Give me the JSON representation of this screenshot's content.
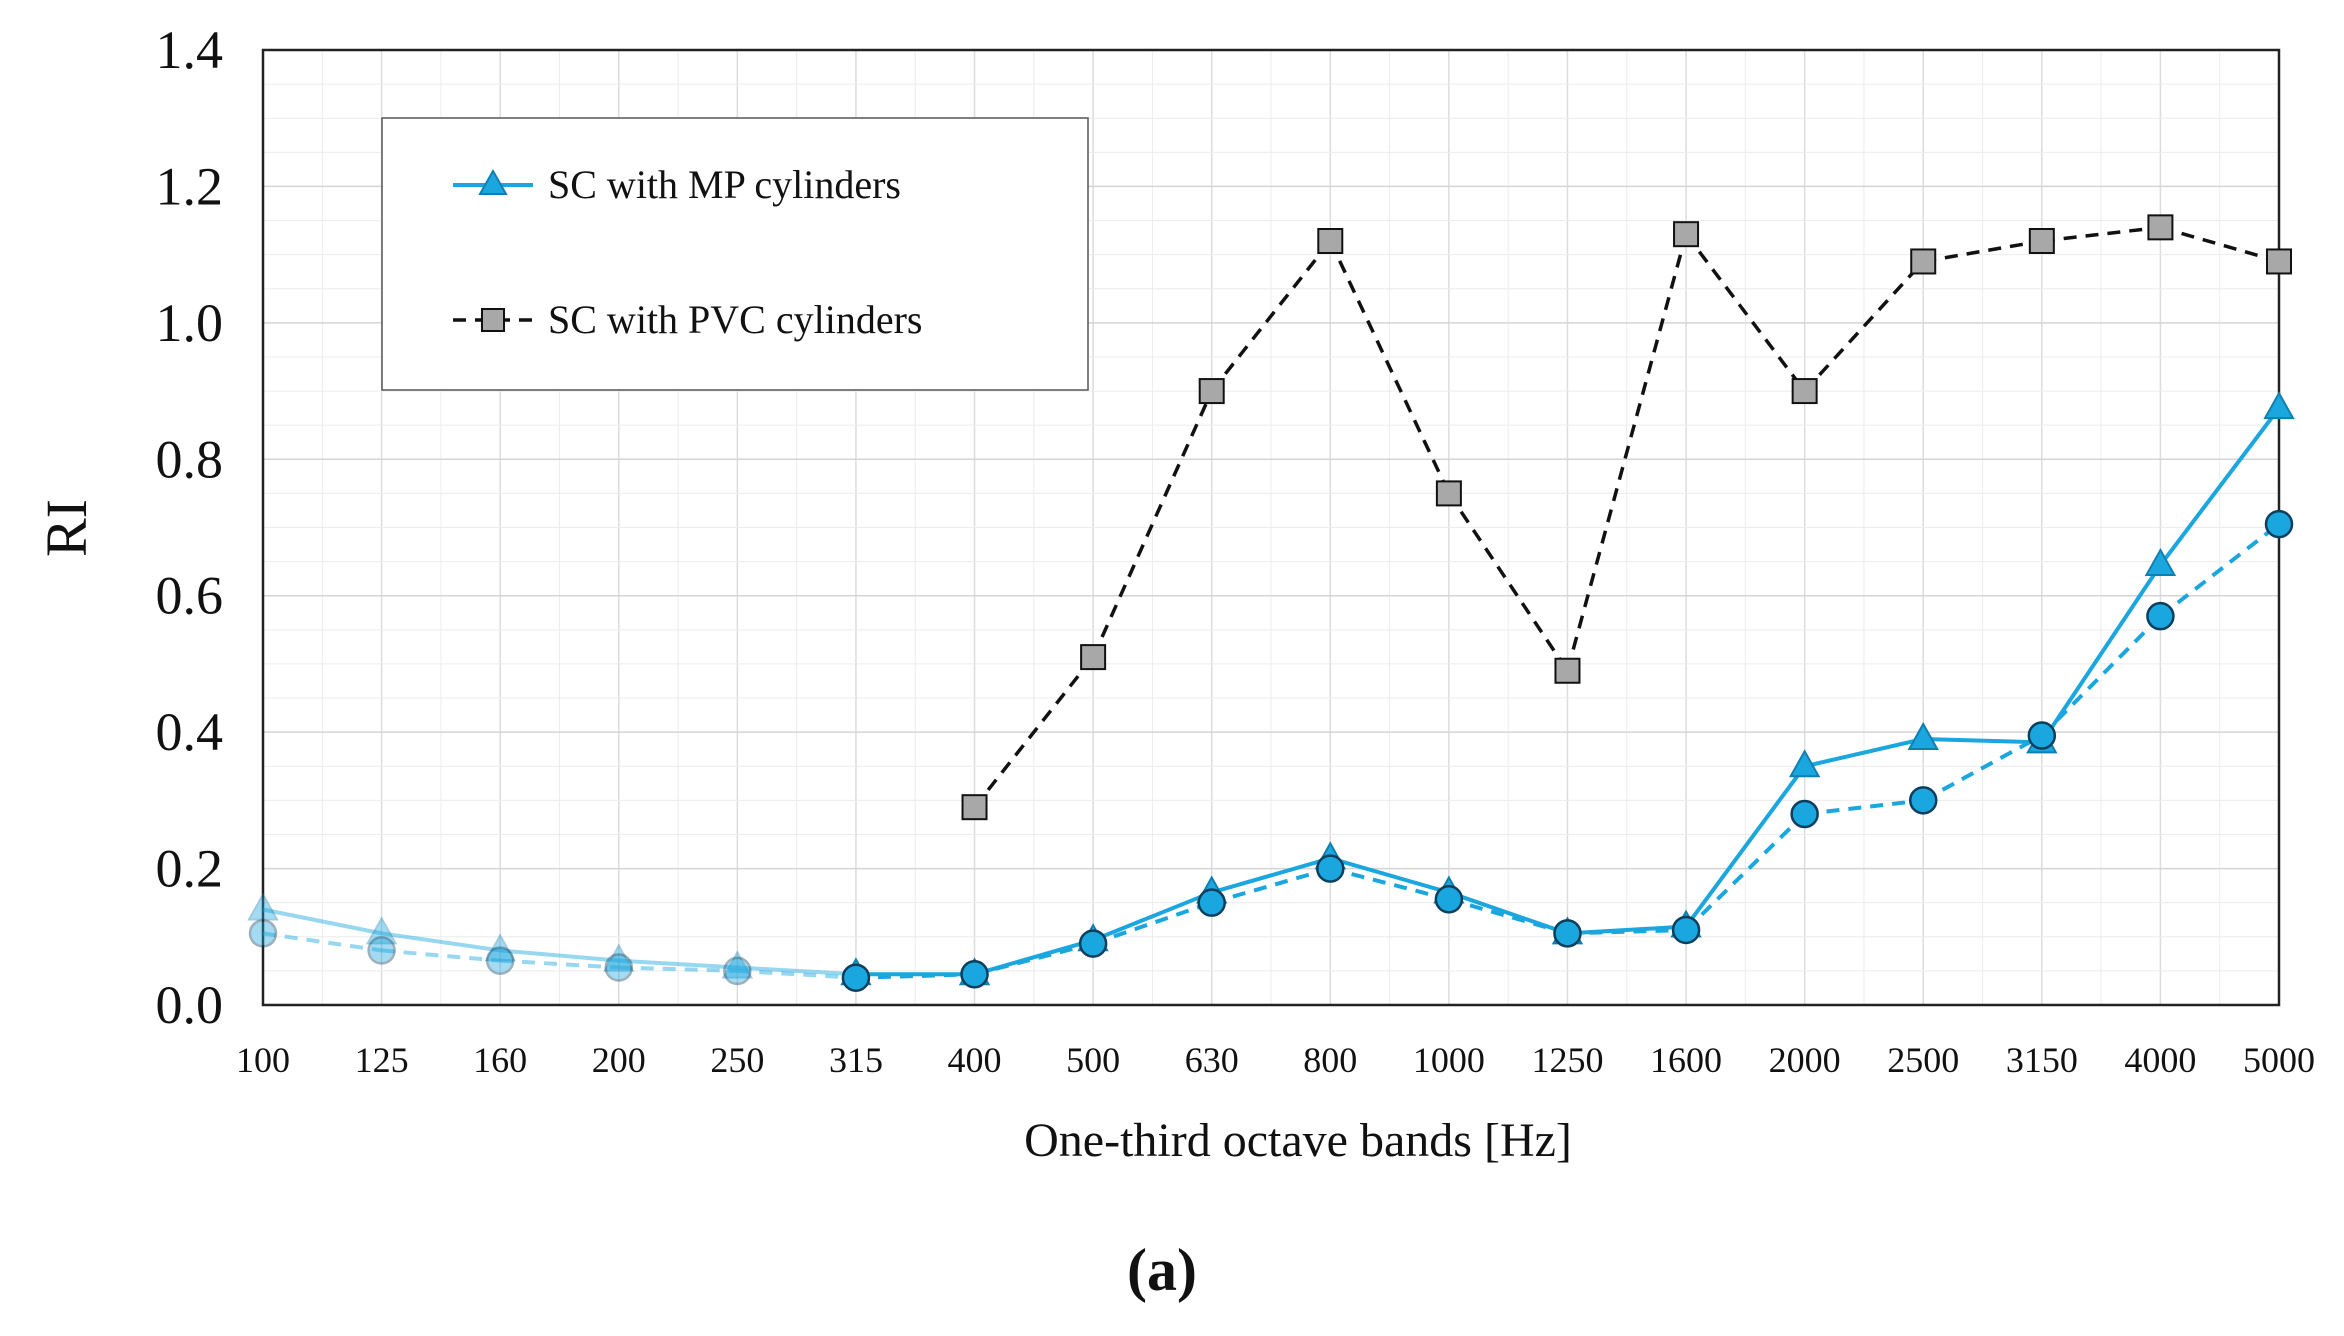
{
  "chart_data": {
    "type": "line",
    "xlabel": "One-third octave bands [Hz]",
    "ylabel": "RI",
    "caption": "(a)",
    "categories": [
      "100",
      "125",
      "160",
      "200",
      "250",
      "315",
      "400",
      "500",
      "630",
      "800",
      "1000",
      "1250",
      "1600",
      "2000",
      "2500",
      "3150",
      "4000",
      "5000"
    ],
    "ylim": [
      0,
      1.4
    ],
    "yticks": [
      "0.0",
      "0.2",
      "0.4",
      "0.6",
      "0.8",
      "1.0",
      "1.2",
      "1.4"
    ],
    "grid": true,
    "legend_position": "top-left",
    "series": [
      {
        "name": "SC with MP cylinders",
        "marker": "triangle",
        "line": "solid",
        "color": "#1aa7e0",
        "values": [
          0.14,
          0.105,
          0.08,
          0.065,
          0.055,
          0.045,
          0.045,
          0.095,
          0.165,
          0.215,
          0.165,
          0.105,
          0.115,
          0.35,
          0.39,
          0.385,
          0.645,
          0.875
        ]
      },
      {
        "marker": "circle",
        "line": "dashed",
        "color": "#1aa7e0",
        "values": [
          0.105,
          0.08,
          0.065,
          0.055,
          0.05,
          0.04,
          0.045,
          0.09,
          0.15,
          0.2,
          0.155,
          0.105,
          0.11,
          0.28,
          0.3,
          0.395,
          0.57,
          0.705
        ]
      },
      {
        "name": "SC with PVC cylinders",
        "marker": "square",
        "line": "dashed",
        "color": "#111111",
        "values": [
          null,
          null,
          null,
          null,
          null,
          null,
          0.29,
          0.51,
          0.9,
          1.12,
          0.75,
          0.49,
          1.13,
          0.9,
          1.09,
          1.12,
          1.14,
          1.09
        ]
      }
    ],
    "faded_below_category_index": 5
  }
}
